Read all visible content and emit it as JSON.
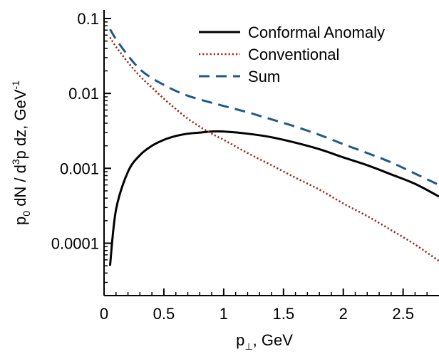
{
  "chart_data": {
    "type": "line",
    "xlabel": {
      "base": "p",
      "sub": "⊥",
      "rest": ", GeV"
    },
    "ylabel": {
      "p": "p",
      "sub0": "0",
      "mid": " dN / d",
      "sup3": "3",
      "tail": "p dz, GeV",
      "supm1": "-1"
    },
    "xlim": [
      0,
      2.8
    ],
    "ylim": [
      2e-05,
      0.13
    ],
    "yscale": "log",
    "xticks": [
      {
        "v": 0,
        "label": "0"
      },
      {
        "v": 0.5,
        "label": "0.5"
      },
      {
        "v": 1,
        "label": "1"
      },
      {
        "v": 1.5,
        "label": "1.5"
      },
      {
        "v": 2,
        "label": "2"
      },
      {
        "v": 2.5,
        "label": "2.5"
      }
    ],
    "yticks": [
      {
        "v": 0.1,
        "label": "0.1"
      },
      {
        "v": 0.01,
        "label": "0.01"
      },
      {
        "v": 0.001,
        "label": "0.001"
      },
      {
        "v": 0.0001,
        "label": "0.0001"
      }
    ],
    "legend_position": "top-right",
    "series": [
      {
        "name": "Conformal Anomaly",
        "color": "#000000",
        "dash": "solid",
        "x": [
          0.05,
          0.1,
          0.2,
          0.3,
          0.4,
          0.5,
          0.6,
          0.7,
          0.8,
          0.9,
          1.0,
          1.2,
          1.4,
          1.6,
          1.8,
          2.0,
          2.2,
          2.4,
          2.6,
          2.8
        ],
        "y": [
          5e-05,
          0.00028,
          0.0009,
          0.0015,
          0.002,
          0.0024,
          0.0027,
          0.0029,
          0.003,
          0.0031,
          0.0031,
          0.0029,
          0.0026,
          0.0022,
          0.0018,
          0.0014,
          0.0011,
          0.00083,
          0.00062,
          0.00042
        ]
      },
      {
        "name": "Conventional",
        "color": "#9b2a1c",
        "dash": "dotted",
        "x": [
          0.05,
          0.1,
          0.2,
          0.3,
          0.4,
          0.5,
          0.6,
          0.7,
          0.8,
          0.9,
          1.0,
          1.2,
          1.4,
          1.6,
          1.8,
          2.0,
          2.2,
          2.4,
          2.6,
          2.8
        ],
        "y": [
          0.056,
          0.042,
          0.026,
          0.017,
          0.012,
          0.0085,
          0.0062,
          0.0046,
          0.0036,
          0.0029,
          0.0024,
          0.0016,
          0.0011,
          0.00075,
          0.00052,
          0.00034,
          0.00023,
          0.00015,
          9.6e-05,
          5.8e-05
        ]
      },
      {
        "name": "Sum",
        "color": "#1f5a8a",
        "dash": "dashed",
        "x": [
          0.05,
          0.1,
          0.2,
          0.3,
          0.4,
          0.5,
          0.6,
          0.7,
          0.8,
          0.9,
          1.0,
          1.2,
          1.4,
          1.6,
          1.8,
          2.0,
          2.2,
          2.4,
          2.6,
          2.8
        ],
        "y": [
          0.072,
          0.053,
          0.032,
          0.021,
          0.016,
          0.013,
          0.0108,
          0.0093,
          0.0083,
          0.0075,
          0.0068,
          0.0056,
          0.0045,
          0.0036,
          0.0028,
          0.0021,
          0.0016,
          0.0012,
          0.00085,
          0.0006
        ]
      }
    ]
  }
}
